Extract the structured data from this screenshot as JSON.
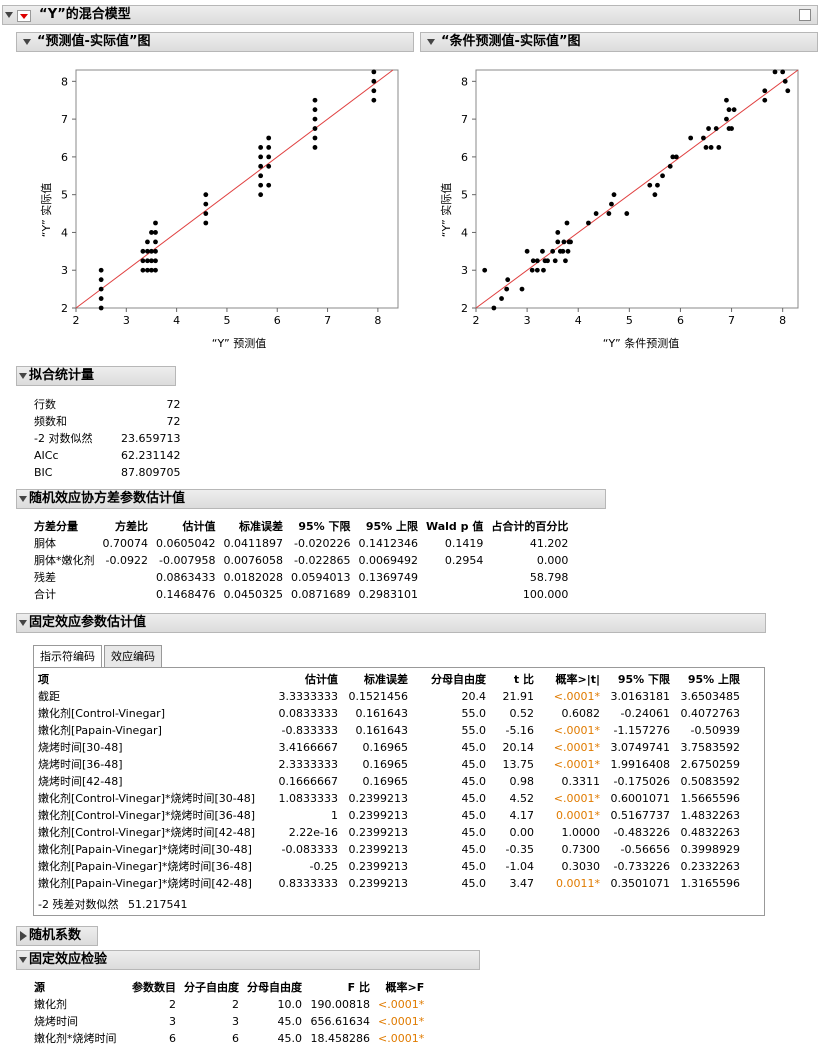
{
  "main": {
    "title": "“Y”的混合模型"
  },
  "plot1": {
    "title": "“预测值-实际值”图",
    "xlabel": "“Y” 预测值",
    "ylabel": "“Y” 实际值"
  },
  "plot2": {
    "title": "“条件预测值-实际值”图",
    "xlabel": "“Y” 条件预测值",
    "ylabel": "“Y” 实际值"
  },
  "chart_data": [
    {
      "type": "scatter",
      "xlim": [
        2,
        8.4
      ],
      "ylim": [
        2,
        8.3
      ],
      "xticks": [
        2,
        3,
        4,
        5,
        6,
        7,
        8
      ],
      "yticks": [
        2,
        3,
        4,
        5,
        6,
        7,
        8
      ],
      "reference_line": "y=x",
      "points": [
        [
          2.5,
          2
        ],
        [
          2.5,
          2.25
        ],
        [
          2.5,
          2.5
        ],
        [
          2.5,
          2.75
        ],
        [
          2.5,
          3
        ],
        [
          3.33,
          3
        ],
        [
          3.33,
          3.25
        ],
        [
          3.33,
          3.5
        ],
        [
          3.42,
          3
        ],
        [
          3.42,
          3.25
        ],
        [
          3.42,
          3.5
        ],
        [
          3.42,
          3.75
        ],
        [
          3.5,
          3
        ],
        [
          3.5,
          3.25
        ],
        [
          3.5,
          3.5
        ],
        [
          3.5,
          4
        ],
        [
          3.58,
          3.25
        ],
        [
          3.58,
          3.5
        ],
        [
          3.58,
          3.75
        ],
        [
          3.58,
          4
        ],
        [
          3.58,
          4.25
        ],
        [
          3.58,
          3
        ],
        [
          4.58,
          4.25
        ],
        [
          4.58,
          4.5
        ],
        [
          4.58,
          4.75
        ],
        [
          4.58,
          5
        ],
        [
          5.67,
          5
        ],
        [
          5.67,
          5.25
        ],
        [
          5.67,
          5.5
        ],
        [
          5.67,
          5.75
        ],
        [
          5.67,
          6
        ],
        [
          5.67,
          6.25
        ],
        [
          5.83,
          5.25
        ],
        [
          5.83,
          5.75
        ],
        [
          5.83,
          6
        ],
        [
          5.83,
          6.25
        ],
        [
          5.83,
          6.5
        ],
        [
          6.75,
          6.25
        ],
        [
          6.75,
          6.5
        ],
        [
          6.75,
          6.75
        ],
        [
          6.75,
          7
        ],
        [
          6.75,
          7.25
        ],
        [
          6.75,
          7.5
        ],
        [
          7.92,
          7.5
        ],
        [
          7.92,
          7.75
        ],
        [
          7.92,
          8
        ],
        [
          7.92,
          8.25
        ]
      ]
    },
    {
      "type": "scatter",
      "xlim": [
        2,
        8.3
      ],
      "ylim": [
        2,
        8.3
      ],
      "xticks": [
        2,
        3,
        4,
        5,
        6,
        7,
        8
      ],
      "yticks": [
        2,
        3,
        4,
        5,
        6,
        7,
        8
      ],
      "reference_line": "y=x",
      "points": [
        [
          2.17,
          3
        ],
        [
          2.35,
          2
        ],
        [
          2.5,
          2.25
        ],
        [
          2.6,
          2.5
        ],
        [
          2.62,
          2.75
        ],
        [
          2.9,
          2.5
        ],
        [
          3.0,
          3.5
        ],
        [
          3.1,
          3
        ],
        [
          3.12,
          3.25
        ],
        [
          3.2,
          3
        ],
        [
          3.2,
          3.25
        ],
        [
          3.3,
          3.5
        ],
        [
          3.32,
          3
        ],
        [
          3.35,
          3.25
        ],
        [
          3.4,
          3.25
        ],
        [
          3.5,
          3.5
        ],
        [
          3.55,
          3.25
        ],
        [
          3.6,
          3.75
        ],
        [
          3.6,
          4
        ],
        [
          3.65,
          3.5
        ],
        [
          3.7,
          3.5
        ],
        [
          3.72,
          3.75
        ],
        [
          3.75,
          3.25
        ],
        [
          3.78,
          4.25
        ],
        [
          3.8,
          3.5
        ],
        [
          3.82,
          3.75
        ],
        [
          3.85,
          3.75
        ],
        [
          4.2,
          4.25
        ],
        [
          4.35,
          4.5
        ],
        [
          4.6,
          4.5
        ],
        [
          4.65,
          4.75
        ],
        [
          4.7,
          5
        ],
        [
          4.95,
          4.5
        ],
        [
          5.4,
          5.25
        ],
        [
          5.5,
          5
        ],
        [
          5.55,
          5.25
        ],
        [
          5.65,
          5.5
        ],
        [
          5.8,
          5.75
        ],
        [
          5.85,
          6
        ],
        [
          5.92,
          6
        ],
        [
          6.2,
          6.5
        ],
        [
          6.45,
          6.5
        ],
        [
          6.5,
          6.25
        ],
        [
          6.55,
          6.75
        ],
        [
          6.6,
          6.25
        ],
        [
          6.7,
          6.75
        ],
        [
          6.75,
          6.25
        ],
        [
          6.95,
          7.25
        ],
        [
          6.9,
          7.5
        ],
        [
          6.9,
          7
        ],
        [
          6.95,
          6.75
        ],
        [
          7.0,
          6.75
        ],
        [
          7.05,
          7.25
        ],
        [
          7.65,
          7.75
        ],
        [
          7.65,
          7.5
        ],
        [
          7.85,
          8.25
        ],
        [
          8.0,
          8.25
        ],
        [
          8.05,
          8
        ],
        [
          8.1,
          7.75
        ]
      ]
    }
  ],
  "fit": {
    "title": "拟合统计量",
    "rows": [
      {
        "label": "行数",
        "value": "72"
      },
      {
        "label": "频数和",
        "value": "72"
      },
      {
        "label": "-2 对数似然",
        "value": "23.659713"
      },
      {
        "label": "AICc",
        "value": "62.231142"
      },
      {
        "label": "BIC",
        "value": "87.809705"
      }
    ]
  },
  "cov": {
    "title": "随机效应协方差参数估计值",
    "headers": [
      "方差分量",
      "方差比",
      "估计值",
      "标准误差",
      "95% 下限",
      "95% 上限",
      "Wald p 值",
      "占合计的百分比"
    ],
    "rows": [
      [
        "胴体",
        "0.70074",
        "0.0605042",
        "0.0411897",
        "-0.020226",
        "0.1412346",
        "0.1419",
        "41.202"
      ],
      [
        "胴体*嫩化剂",
        "-0.0922",
        "-0.007958",
        "0.0076058",
        "-0.022865",
        "0.0069492",
        "0.2954",
        "0.000"
      ],
      [
        "残差",
        "",
        "0.0863433",
        "0.0182028",
        "0.0594013",
        "0.1369749",
        "",
        "58.798"
      ],
      [
        "合计",
        "",
        "0.1468476",
        "0.0450325",
        "0.0871689",
        "0.2983101",
        "",
        "100.000"
      ]
    ]
  },
  "fixed": {
    "title": "固定效应参数估计值",
    "tabs": [
      "指示符编码",
      "效应编码"
    ],
    "headers": [
      "项",
      "估计值",
      "标准误差",
      "分母自由度",
      "t 比",
      "概率>|t|",
      "95% 下限",
      "95% 上限"
    ],
    "rows": [
      [
        "截距",
        "3.3333333",
        "0.1521456",
        "20.4",
        "21.91",
        "<.0001*",
        "3.0163181",
        "3.6503485"
      ],
      [
        "嫩化剂[Control-Vinegar]",
        "0.0833333",
        "0.161643",
        "55.0",
        "0.52",
        "0.6082",
        "-0.24061",
        "0.4072763"
      ],
      [
        "嫩化剂[Papain-Vinegar]",
        "-0.833333",
        "0.161643",
        "55.0",
        "-5.16",
        "<.0001*",
        "-1.157276",
        "-0.50939"
      ],
      [
        "烧烤时间[30-48]",
        "3.4166667",
        "0.16965",
        "45.0",
        "20.14",
        "<.0001*",
        "3.0749741",
        "3.7583592"
      ],
      [
        "烧烤时间[36-48]",
        "2.3333333",
        "0.16965",
        "45.0",
        "13.75",
        "<.0001*",
        "1.9916408",
        "2.6750259"
      ],
      [
        "烧烤时间[42-48]",
        "0.1666667",
        "0.16965",
        "45.0",
        "0.98",
        "0.3311",
        "-0.175026",
        "0.5083592"
      ],
      [
        "嫩化剂[Control-Vinegar]*烧烤时间[30-48]",
        "1.0833333",
        "0.2399213",
        "45.0",
        "4.52",
        "<.0001*",
        "0.6001071",
        "1.5665596"
      ],
      [
        "嫩化剂[Control-Vinegar]*烧烤时间[36-48]",
        "1",
        "0.2399213",
        "45.0",
        "4.17",
        "0.0001*",
        "0.5167737",
        "1.4832263"
      ],
      [
        "嫩化剂[Control-Vinegar]*烧烤时间[42-48]",
        "2.22e-16",
        "0.2399213",
        "45.0",
        "0.00",
        "1.0000",
        "-0.483226",
        "0.4832263"
      ],
      [
        "嫩化剂[Papain-Vinegar]*烧烤时间[30-48]",
        "-0.083333",
        "0.2399213",
        "45.0",
        "-0.35",
        "0.7300",
        "-0.56656",
        "0.3998929"
      ],
      [
        "嫩化剂[Papain-Vinegar]*烧烤时间[36-48]",
        "-0.25",
        "0.2399213",
        "45.0",
        "-1.04",
        "0.3030",
        "-0.733226",
        "0.2332263"
      ],
      [
        "嫩化剂[Papain-Vinegar]*烧烤时间[42-48]",
        "0.8333333",
        "0.2399213",
        "45.0",
        "3.47",
        "0.0011*",
        "0.3501071",
        "1.3165596"
      ]
    ],
    "footer_label": "-2 残差对数似然",
    "footer_value": "51.217541"
  },
  "random_coef": {
    "title": "随机系数"
  },
  "tests": {
    "title": "固定效应检验",
    "headers": [
      "源",
      "参数数目",
      "分子自由度",
      "分母自由度",
      "F 比",
      "概率>F"
    ],
    "rows": [
      [
        "嫩化剂",
        "2",
        "2",
        "10.0",
        "190.00818",
        "<.0001*"
      ],
      [
        "烧烤时间",
        "3",
        "3",
        "45.0",
        "656.61634",
        "<.0001*"
      ],
      [
        "嫩化剂*烧烤时间",
        "6",
        "6",
        "45.0",
        "18.458286",
        "<.0001*"
      ]
    ]
  }
}
